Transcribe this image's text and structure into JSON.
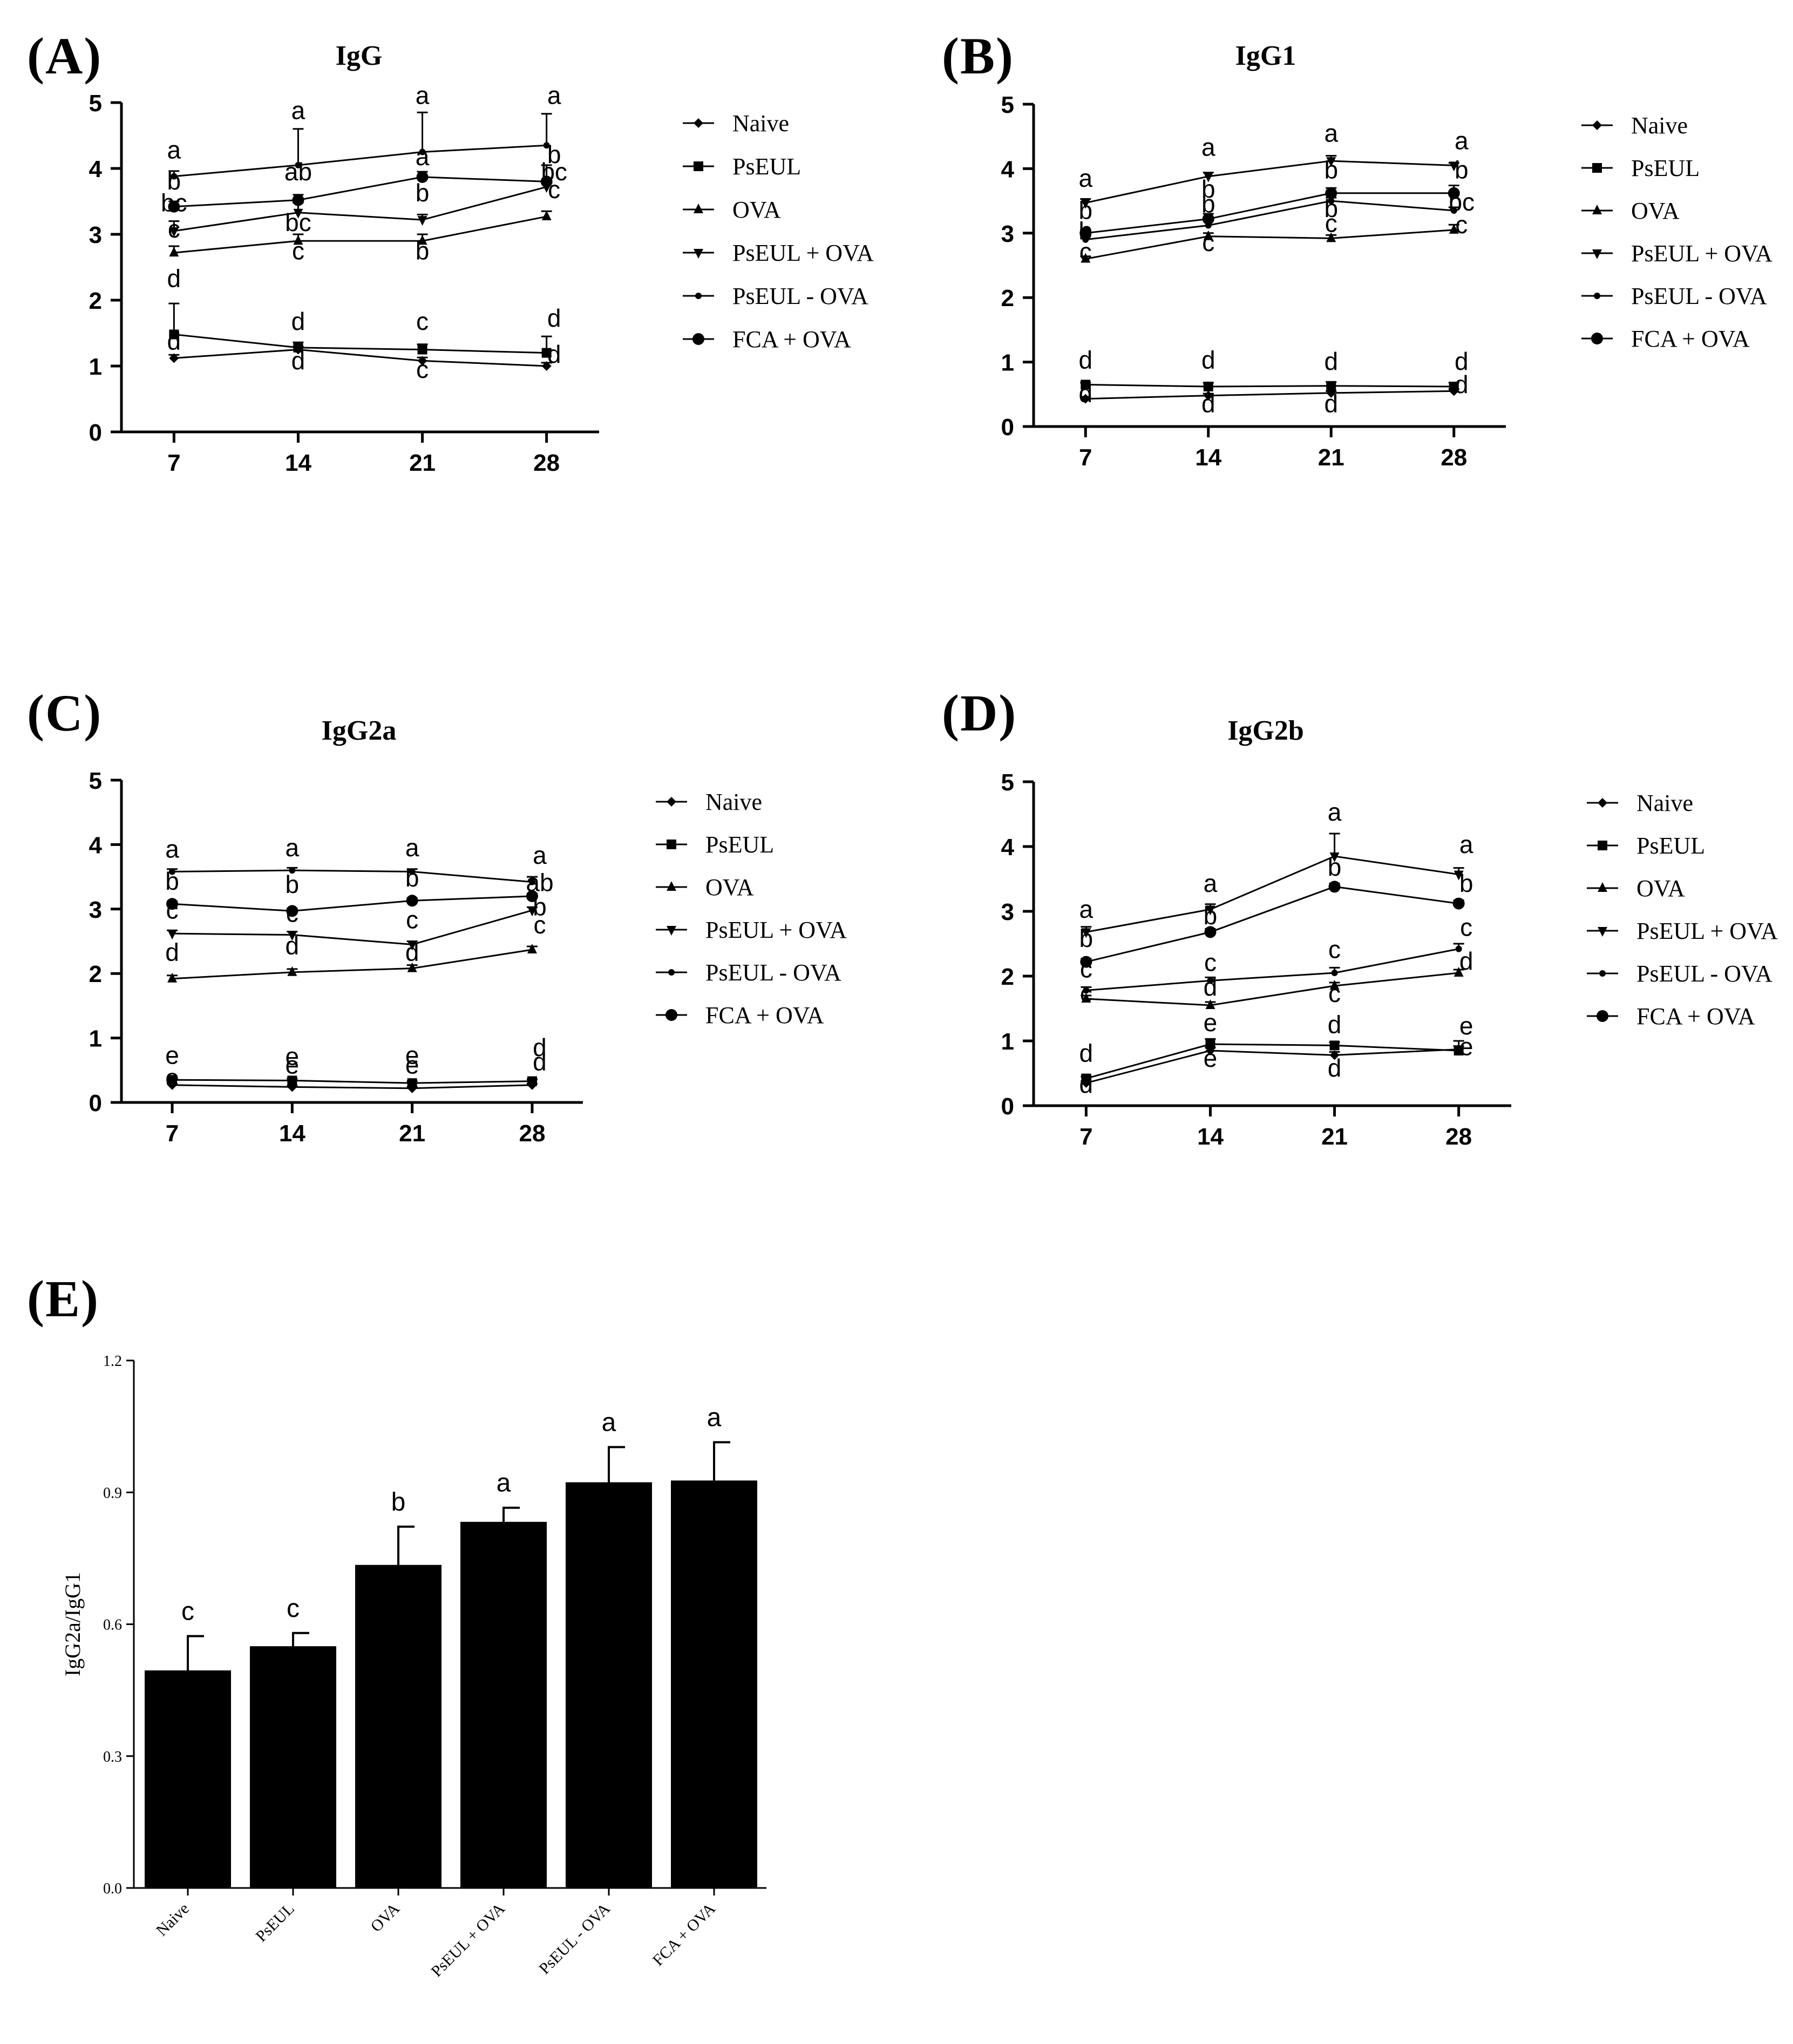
{
  "figure": {
    "panel_labels": [
      "(A)",
      "(B)",
      "(C)",
      "(D)",
      "(E)"
    ]
  },
  "chart_data": [
    {
      "id": "A",
      "type": "line",
      "title": "IgG",
      "xlabel": "",
      "ylabel": "",
      "categories": [
        "7",
        "14",
        "21",
        "28"
      ],
      "yticks": [
        "0",
        "1",
        "2",
        "3",
        "4",
        "5"
      ],
      "ylim": [
        0,
        5
      ],
      "series": [
        {
          "name": "Naive",
          "marker": "diamond",
          "values": [
            1.12,
            1.25,
            1.08,
            1.0
          ],
          "errors": [
            0.05,
            0.05,
            0.05,
            0.05
          ]
        },
        {
          "name": "PsEUL",
          "marker": "square",
          "values": [
            1.48,
            1.28,
            1.25,
            1.2
          ],
          "errors": [
            0.47,
            0.08,
            0.08,
            0.25
          ]
        },
        {
          "name": "OVA",
          "marker": "triangle",
          "values": [
            2.72,
            2.9,
            2.9,
            3.27
          ],
          "errors": [
            0.1,
            0.1,
            0.1,
            0.08
          ]
        },
        {
          "name": "PsEUL + OVA",
          "marker": "tri-down",
          "values": [
            3.05,
            3.33,
            3.22,
            3.72
          ],
          "errors": [
            0.15,
            0.15,
            0.08,
            0.08
          ]
        },
        {
          "name": "PsEUL - OVA",
          "marker": "dot",
          "values": [
            3.88,
            4.05,
            4.25,
            4.35
          ],
          "errors": [
            0.08,
            0.55,
            0.6,
            0.48
          ]
        },
        {
          "name": "FCA + OVA",
          "marker": "circle",
          "values": [
            3.42,
            3.52,
            3.87,
            3.8
          ],
          "errors": [
            0.08,
            0.08,
            0.08,
            0.25
          ]
        }
      ],
      "annotations": [
        {
          "text": "a",
          "x": "7",
          "y": 4.15
        },
        {
          "text": "b",
          "x": "7",
          "y": 3.68
        },
        {
          "text": "bc",
          "x": "7",
          "y": 3.35
        },
        {
          "text": "c",
          "x": "7",
          "y": 2.95
        },
        {
          "text": "d",
          "x": "7",
          "y": 2.2
        },
        {
          "text": "d",
          "x": "7",
          "y": 1.25
        },
        {
          "text": "a",
          "x": "14",
          "y": 4.75
        },
        {
          "text": "ab",
          "x": "14",
          "y": 3.82
        },
        {
          "text": "bc",
          "x": "14",
          "y": 3.05
        },
        {
          "text": "c",
          "x": "14",
          "y": 2.62
        },
        {
          "text": "d",
          "x": "14",
          "y": 1.55
        },
        {
          "text": "d",
          "x": "14",
          "y": 0.95
        },
        {
          "text": "a",
          "x": "21",
          "y": 4.98
        },
        {
          "text": "a",
          "x": "21",
          "y": 4.05
        },
        {
          "text": "b",
          "x": "21",
          "y": 3.5
        },
        {
          "text": "b",
          "x": "21",
          "y": 2.62
        },
        {
          "text": "c",
          "x": "21",
          "y": 1.55
        },
        {
          "text": "c",
          "x": "21",
          "y": 0.82
        },
        {
          "text": "a",
          "x": "28",
          "y": 4.98
        },
        {
          "text": "b",
          "x": "28",
          "y": 4.08
        },
        {
          "text": "bc",
          "x": "28",
          "y": 3.82
        },
        {
          "text": "c",
          "x": "28",
          "y": 3.55
        },
        {
          "text": "d",
          "x": "28",
          "y": 1.6
        },
        {
          "text": "d",
          "x": "28",
          "y": 1.05
        }
      ]
    },
    {
      "id": "B",
      "type": "line",
      "title": "IgG1",
      "xlabel": "",
      "ylabel": "",
      "categories": [
        "7",
        "14",
        "21",
        "28"
      ],
      "yticks": [
        "0",
        "1",
        "2",
        "3",
        "4",
        "5"
      ],
      "ylim": [
        0,
        5
      ],
      "series": [
        {
          "name": "Naive",
          "marker": "diamond",
          "values": [
            0.43,
            0.48,
            0.52,
            0.55
          ],
          "errors": [
            0.03,
            0.03,
            0.03,
            0.03
          ]
        },
        {
          "name": "PsEUL",
          "marker": "square",
          "values": [
            0.65,
            0.62,
            0.63,
            0.62
          ],
          "errors": [
            0.03,
            0.06,
            0.06,
            0.06
          ]
        },
        {
          "name": "OVA",
          "marker": "triangle",
          "values": [
            2.6,
            2.95,
            2.92,
            3.05
          ],
          "errors": [
            0.04,
            0.05,
            0.05,
            0.08
          ]
        },
        {
          "name": "PsEUL + OVA",
          "marker": "tri-down",
          "values": [
            3.47,
            3.88,
            4.12,
            4.05
          ],
          "errors": [
            0.06,
            0.06,
            0.08,
            0.04
          ]
        },
        {
          "name": "PsEUL - OVA",
          "marker": "dot",
          "values": [
            2.9,
            3.12,
            3.5,
            3.35
          ],
          "errors": [
            0.05,
            0.12,
            0.05,
            0.05
          ]
        },
        {
          "name": "FCA + OVA",
          "marker": "circle",
          "values": [
            3.0,
            3.22,
            3.62,
            3.62
          ],
          "errors": [
            0.05,
            0.08,
            0.08,
            0.12
          ]
        }
      ],
      "annotations": [
        {
          "text": "a",
          "x": "7",
          "y": 3.72
        },
        {
          "text": "b",
          "x": "7",
          "y": 3.22
        },
        {
          "text": "b",
          "x": "7",
          "y": 2.9
        },
        {
          "text": "c",
          "x": "7",
          "y": 2.58
        },
        {
          "text": "d",
          "x": "7",
          "y": 0.9
        },
        {
          "text": "d",
          "x": "7",
          "y": 0.38
        },
        {
          "text": "a",
          "x": "14",
          "y": 4.2
        },
        {
          "text": "b",
          "x": "14",
          "y": 3.55
        },
        {
          "text": "b",
          "x": "14",
          "y": 3.32
        },
        {
          "text": "c",
          "x": "14",
          "y": 2.72
        },
        {
          "text": "d",
          "x": "14",
          "y": 0.9
        },
        {
          "text": "d",
          "x": "14",
          "y": 0.22
        },
        {
          "text": "a",
          "x": "21",
          "y": 4.42
        },
        {
          "text": "b",
          "x": "21",
          "y": 3.85
        },
        {
          "text": "b",
          "x": "21",
          "y": 3.25
        },
        {
          "text": "c",
          "x": "21",
          "y": 3.02
        },
        {
          "text": "d",
          "x": "21",
          "y": 0.88
        },
        {
          "text": "d",
          "x": "21",
          "y": 0.22
        },
        {
          "text": "a",
          "x": "28",
          "y": 4.3
        },
        {
          "text": "b",
          "x": "28",
          "y": 3.85
        },
        {
          "text": "bc",
          "x": "28",
          "y": 3.35
        },
        {
          "text": "c",
          "x": "28",
          "y": 3.0
        },
        {
          "text": "d",
          "x": "28",
          "y": 0.88
        },
        {
          "text": "d",
          "x": "28",
          "y": 0.52
        }
      ]
    },
    {
      "id": "C",
      "type": "line",
      "title": "IgG2a",
      "xlabel": "",
      "ylabel": "",
      "categories": [
        "7",
        "14",
        "21",
        "28"
      ],
      "yticks": [
        "0",
        "1",
        "2",
        "3",
        "4",
        "5"
      ],
      "ylim": [
        0,
        5
      ],
      "series": [
        {
          "name": "Naive",
          "marker": "diamond",
          "values": [
            0.27,
            0.24,
            0.22,
            0.27
          ],
          "errors": [
            0.02,
            0.02,
            0.02,
            0.02
          ]
        },
        {
          "name": "PsEUL",
          "marker": "square",
          "values": [
            0.35,
            0.34,
            0.3,
            0.33
          ],
          "errors": [
            0.03,
            0.03,
            0.03,
            0.03
          ]
        },
        {
          "name": "OVA",
          "marker": "triangle",
          "values": [
            1.92,
            2.02,
            2.08,
            2.37
          ],
          "errors": [
            0.05,
            0.05,
            0.05,
            0.05
          ]
        },
        {
          "name": "PsEUL + OVA",
          "marker": "tri-down",
          "values": [
            2.62,
            2.6,
            2.45,
            2.98
          ],
          "errors": [
            0.05,
            0.05,
            0.05,
            0.05
          ]
        },
        {
          "name": "PsEUL - OVA",
          "marker": "dot",
          "values": [
            3.58,
            3.6,
            3.58,
            3.42
          ],
          "errors": [
            0.04,
            0.04,
            0.04,
            0.08
          ]
        },
        {
          "name": "FCA + OVA",
          "marker": "circle",
          "values": [
            3.08,
            2.97,
            3.13,
            3.2
          ],
          "errors": [
            0.04,
            0.04,
            0.04,
            0.04
          ]
        }
      ],
      "annotations": [
        {
          "text": "a",
          "x": "7",
          "y": 3.8
        },
        {
          "text": "b",
          "x": "7",
          "y": 3.3
        },
        {
          "text": "c",
          "x": "7",
          "y": 2.85
        },
        {
          "text": "d",
          "x": "7",
          "y": 2.2
        },
        {
          "text": "e",
          "x": "7",
          "y": 0.6
        },
        {
          "text": "e",
          "x": "7",
          "y": 0.25
        },
        {
          "text": "a",
          "x": "14",
          "y": 3.82
        },
        {
          "text": "b",
          "x": "14",
          "y": 3.25
        },
        {
          "text": "c",
          "x": "14",
          "y": 2.8
        },
        {
          "text": "d",
          "x": "14",
          "y": 2.3
        },
        {
          "text": "e",
          "x": "14",
          "y": 0.58
        },
        {
          "text": "e",
          "x": "14",
          "y": 0.45
        },
        {
          "text": "a",
          "x": "21",
          "y": 3.82
        },
        {
          "text": "b",
          "x": "21",
          "y": 3.35
        },
        {
          "text": "c",
          "x": "21",
          "y": 2.7
        },
        {
          "text": "d",
          "x": "21",
          "y": 2.2
        },
        {
          "text": "e",
          "x": "21",
          "y": 0.6
        },
        {
          "text": "e",
          "x": "21",
          "y": 0.45
        },
        {
          "text": "a",
          "x": "28",
          "y": 3.7
        },
        {
          "text": "ab",
          "x": "28",
          "y": 3.28
        },
        {
          "text": "b",
          "x": "28",
          "y": 2.9
        },
        {
          "text": "c",
          "x": "28",
          "y": 2.62
        },
        {
          "text": "d",
          "x": "28",
          "y": 0.72
        },
        {
          "text": "d",
          "x": "28",
          "y": 0.5
        }
      ]
    },
    {
      "id": "D",
      "type": "line",
      "title": "IgG2b",
      "xlabel": "",
      "ylabel": "",
      "categories": [
        "7",
        "14",
        "21",
        "28"
      ],
      "yticks": [
        "0",
        "1",
        "2",
        "3",
        "4",
        "5"
      ],
      "ylim": [
        0,
        5
      ],
      "series": [
        {
          "name": "Naive",
          "marker": "diamond",
          "values": [
            0.35,
            0.85,
            0.78,
            0.87
          ],
          "errors": [
            0.03,
            0.05,
            0.05,
            0.05
          ]
        },
        {
          "name": "PsEUL",
          "marker": "square",
          "values": [
            0.42,
            0.95,
            0.93,
            0.85
          ],
          "errors": [
            0.03,
            0.08,
            0.05,
            0.15
          ]
        },
        {
          "name": "OVA",
          "marker": "triangle",
          "values": [
            1.65,
            1.55,
            1.85,
            2.05
          ],
          "errors": [
            0.05,
            0.05,
            0.05,
            0.05
          ]
        },
        {
          "name": "PsEUL + OVA",
          "marker": "tri-down",
          "values": [
            2.68,
            3.03,
            3.85,
            3.57
          ],
          "errors": [
            0.08,
            0.08,
            0.35,
            0.1
          ]
        },
        {
          "name": "PsEUL - OVA",
          "marker": "dot",
          "values": [
            1.78,
            1.93,
            2.05,
            2.42
          ],
          "errors": [
            0.05,
            0.05,
            0.08,
            0.08
          ]
        },
        {
          "name": "FCA + OVA",
          "marker": "circle",
          "values": [
            2.22,
            2.68,
            3.38,
            3.12
          ],
          "errors": [
            0.05,
            0.05,
            0.05,
            0.05
          ]
        }
      ],
      "annotations": [
        {
          "text": "a",
          "x": "7",
          "y": 2.9
        },
        {
          "text": "b",
          "x": "7",
          "y": 2.45
        },
        {
          "text": "c",
          "x": "7",
          "y": 1.98
        },
        {
          "text": "c",
          "x": "7",
          "y": 1.6
        },
        {
          "text": "d",
          "x": "7",
          "y": 0.68
        },
        {
          "text": "d",
          "x": "7",
          "y": 0.2
        },
        {
          "text": "a",
          "x": "14",
          "y": 3.3
        },
        {
          "text": "b",
          "x": "14",
          "y": 2.8
        },
        {
          "text": "c",
          "x": "14",
          "y": 2.08
        },
        {
          "text": "d",
          "x": "14",
          "y": 1.7
        },
        {
          "text": "e",
          "x": "14",
          "y": 1.15
        },
        {
          "text": "e",
          "x": "14",
          "y": 0.6
        },
        {
          "text": "a",
          "x": "21",
          "y": 4.4
        },
        {
          "text": "b",
          "x": "21",
          "y": 3.55
        },
        {
          "text": "c",
          "x": "21",
          "y": 2.28
        },
        {
          "text": "c",
          "x": "21",
          "y": 1.6
        },
        {
          "text": "d",
          "x": "21",
          "y": 1.12
        },
        {
          "text": "d",
          "x": "21",
          "y": 0.45
        },
        {
          "text": "a",
          "x": "28",
          "y": 3.9
        },
        {
          "text": "b",
          "x": "28",
          "y": 3.3
        },
        {
          "text": "c",
          "x": "28",
          "y": 2.62
        },
        {
          "text": "d",
          "x": "28",
          "y": 2.1
        },
        {
          "text": "e",
          "x": "28",
          "y": 1.1
        },
        {
          "text": "e",
          "x": "28",
          "y": 0.78
        }
      ]
    },
    {
      "id": "E",
      "type": "bar",
      "title": "",
      "xlabel": "",
      "ylabel": "IgG2a/IgG1",
      "categories": [
        "Naive",
        "PsEUL",
        "OVA",
        "PsEUL + OVA",
        "PsEUL - OVA",
        "FCA + OVA"
      ],
      "values": [
        0.495,
        0.55,
        0.735,
        0.833,
        0.923,
        0.927
      ],
      "errors": [
        0.078,
        0.03,
        0.087,
        0.032,
        0.08,
        0.087
      ],
      "labels": [
        "c",
        "c",
        "b",
        "a",
        "a",
        "a"
      ],
      "yticks": [
        "0.0",
        "0.3",
        "0.6",
        "0.9",
        "1.2"
      ],
      "ylim": [
        0,
        1.2
      ]
    }
  ]
}
